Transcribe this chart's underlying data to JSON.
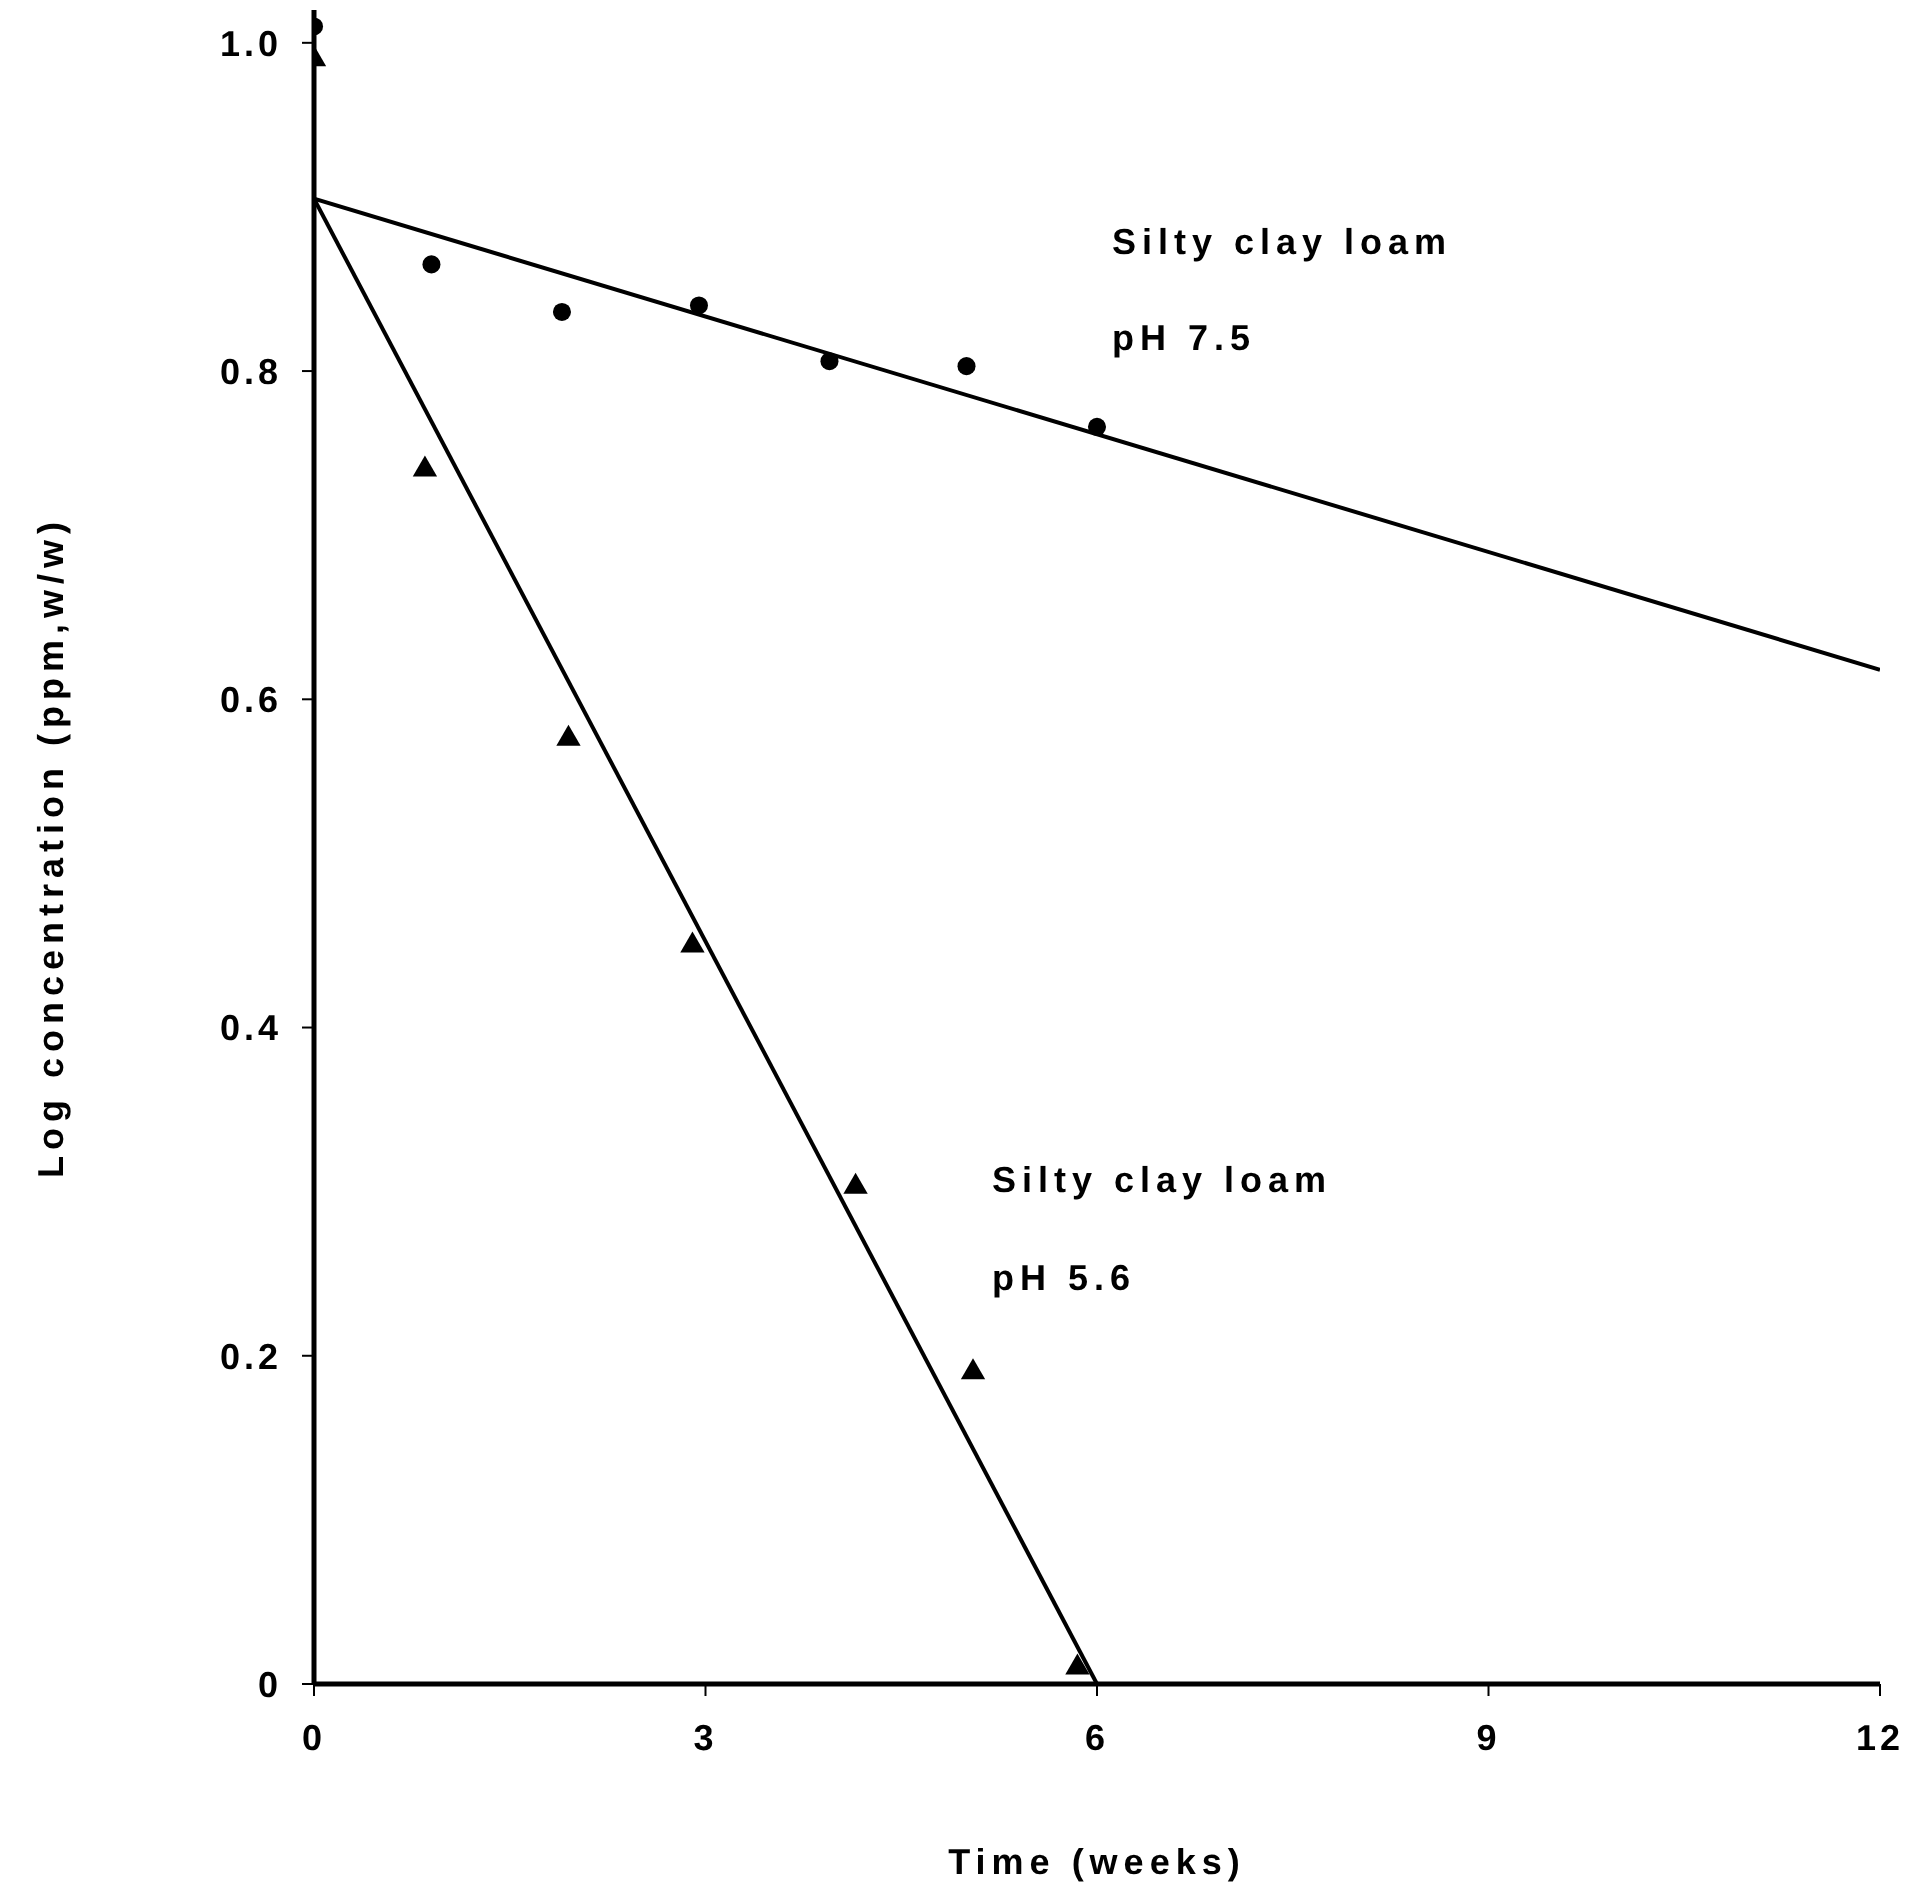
{
  "chart_data": {
    "type": "scatter",
    "xlabel": "Time (weeks)",
    "ylabel": "Log concentration (ppm,w/w)",
    "xlim": [
      0,
      12
    ],
    "xticks": [
      0,
      3,
      6,
      9,
      12
    ],
    "ylim": [
      0,
      1.02
    ],
    "yticks": [
      0,
      0.2,
      0.4,
      0.6,
      0.8,
      {
        "value": 1,
        "label": "1.0"
      }
    ],
    "grid": false,
    "legend": false,
    "series": [
      {
        "marker": "circle",
        "color": "#000000",
        "x": [
          0,
          0.9,
          1.9,
          2.95,
          3.95,
          5.0,
          6.0
        ],
        "values": [
          1.01,
          0.865,
          0.836,
          0.84,
          0.806,
          0.803,
          0.766
        ]
      },
      {
        "marker": "triangle",
        "color": "#000000",
        "x": [
          0,
          0.85,
          1.95,
          2.9,
          4.15,
          5.05,
          5.85
        ],
        "values": [
          0.99,
          0.74,
          0.576,
          0.45,
          0.303,
          0.19,
          0.01
        ]
      },
      {
        "type": "line",
        "marker": "none",
        "color": "#000000",
        "x": [
          0,
          12
        ],
        "values": [
          0.905,
          0.618
        ]
      },
      {
        "type": "line",
        "marker": "none",
        "color": "#000000",
        "x": [
          0,
          6
        ],
        "values": [
          0.905,
          0
        ]
      }
    ],
    "annotations": [
      "Silty clay loam",
      "pH 7.5",
      "Silty clay loam",
      "pH 5.6"
    ]
  }
}
